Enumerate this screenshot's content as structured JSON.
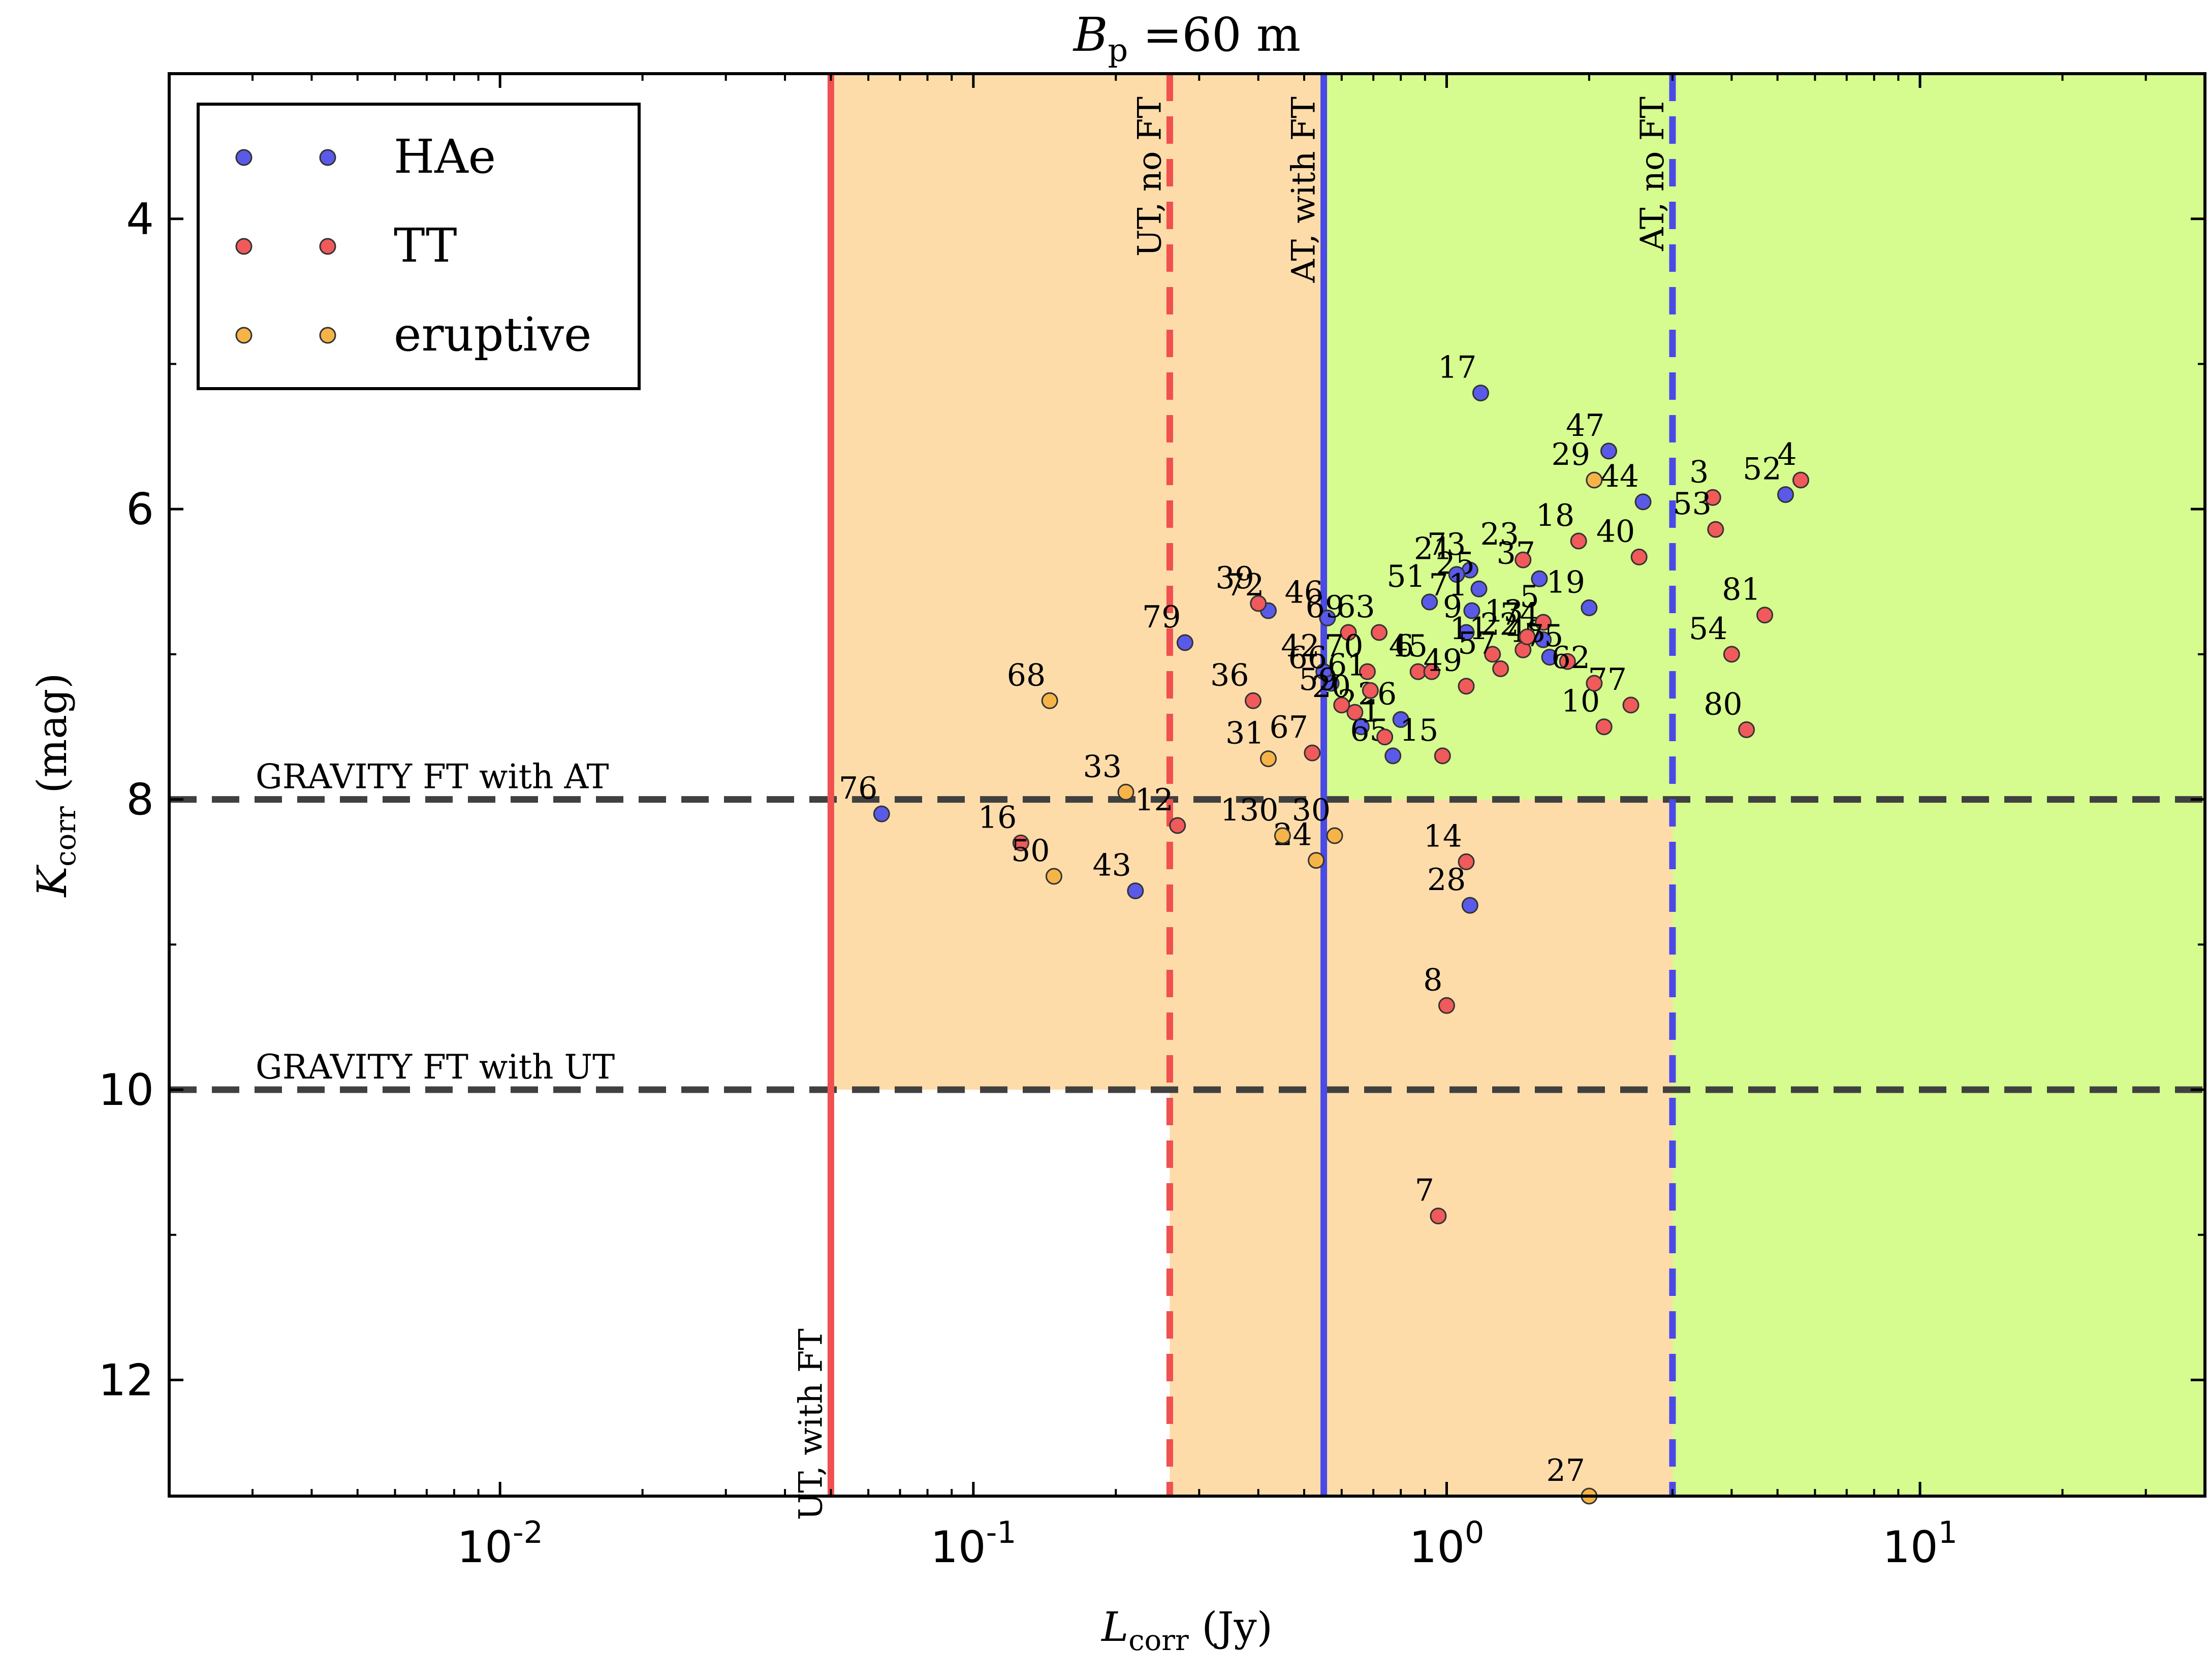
{
  "chart_data": {
    "type": "scatter",
    "title": "B_p = 60 m",
    "title_parts": {
      "main": "B",
      "sub": "p",
      "rest": " =60 m"
    },
    "xlabel": {
      "main": "L",
      "sub": "corr",
      "rest": " (Jy)"
    },
    "ylabel": {
      "main": "K",
      "sub": "corr",
      "rest": " (mag)"
    },
    "x_scale": "log",
    "xlim": [
      0.002,
      40
    ],
    "ylim": [
      12.8,
      3.0
    ],
    "y_inverted": true,
    "x_ticks": [
      {
        "value": 0.01,
        "base": "10",
        "exp": "-2"
      },
      {
        "value": 0.1,
        "base": "10",
        "exp": "-1"
      },
      {
        "value": 1,
        "base": "10",
        "exp": "0"
      },
      {
        "value": 10,
        "base": "10",
        "exp": "1"
      }
    ],
    "y_ticks": [
      4,
      6,
      8,
      10,
      12
    ],
    "legend": {
      "position": "upper-left",
      "entries": [
        {
          "label": "HAe",
          "color": "#5a5ae8"
        },
        {
          "label": "TT",
          "color": "#f05a5a"
        },
        {
          "label": "eruptive",
          "color": "#f6b448"
        }
      ]
    },
    "regions": [
      {
        "x": [
          0.05,
          0.55
        ],
        "y": [
          3.0,
          10
        ],
        "color": "#fddcaa"
      },
      {
        "x": [
          0.26,
          0.55
        ],
        "y": [
          10,
          12.8
        ],
        "color": "#fddcaa"
      },
      {
        "x": [
          0.55,
          3.0
        ],
        "y": [
          8,
          12.8
        ],
        "color": "#fddcaa"
      },
      {
        "x": [
          0.55,
          40
        ],
        "y": [
          3.0,
          8
        ],
        "color": "#d6fb8e"
      },
      {
        "x": [
          3.0,
          40
        ],
        "y": [
          8,
          12.8
        ],
        "color": "#d6fb8e"
      }
    ],
    "vlines": [
      {
        "x": 0.05,
        "style": "solid",
        "color": "#f05050",
        "label": "UT, with FT",
        "label_pos": "bottom"
      },
      {
        "x": 0.26,
        "style": "dashed",
        "color": "#f05050",
        "label": "UT, no FT",
        "label_pos": "top"
      },
      {
        "x": 0.55,
        "style": "solid",
        "color": "#4a4ae6",
        "label": "AT, with FT",
        "label_pos": "top"
      },
      {
        "x": 3.0,
        "style": "dashed",
        "color": "#4a4ae6",
        "label": "AT, no FT",
        "label_pos": "top"
      }
    ],
    "hlines": [
      {
        "y": 8,
        "style": "dashed",
        "color": "#404040",
        "label": "GRAVITY FT with AT"
      },
      {
        "y": 10,
        "style": "dashed",
        "color": "#404040",
        "label": "GRAVITY FT with UT"
      }
    ],
    "series": [
      {
        "name": "HAe",
        "color": "#5a5ae8",
        "points": [
          {
            "id": "17",
            "x": 1.18,
            "y": 5.2
          },
          {
            "id": "47",
            "x": 2.2,
            "y": 5.6
          },
          {
            "id": "44",
            "x": 2.6,
            "y": 5.95
          },
          {
            "id": "52",
            "x": 5.2,
            "y": 5.9
          },
          {
            "id": "73",
            "x": 1.12,
            "y": 6.42
          },
          {
            "id": "25",
            "x": 1.17,
            "y": 6.55
          },
          {
            "id": "51",
            "x": 0.92,
            "y": 6.64
          },
          {
            "id": "21",
            "x": 1.05,
            "y": 6.45
          },
          {
            "id": "71",
            "x": 1.13,
            "y": 6.7
          },
          {
            "id": "19",
            "x": 2.0,
            "y": 6.68
          },
          {
            "id": "37",
            "x": 1.57,
            "y": 6.48
          },
          {
            "id": "79",
            "x": 0.28,
            "y": 6.92
          },
          {
            "id": "72",
            "x": 0.42,
            "y": 6.7
          },
          {
            "id": "46",
            "x": 0.56,
            "y": 6.75
          },
          {
            "id": "42",
            "x": 0.55,
            "y": 7.12
          },
          {
            "id": "66",
            "x": 0.57,
            "y": 7.2
          },
          {
            "id": "2",
            "x": 0.66,
            "y": 7.5
          },
          {
            "id": "26",
            "x": 0.8,
            "y": 7.45
          },
          {
            "id": "65",
            "x": 0.77,
            "y": 7.7
          },
          {
            "id": "9",
            "x": 1.1,
            "y": 6.85
          },
          {
            "id": "74",
            "x": 1.6,
            "y": 6.9
          },
          {
            "id": "48",
            "x": 1.65,
            "y": 7.02
          },
          {
            "id": "43",
            "x": 0.22,
            "y": 8.63
          },
          {
            "id": "28",
            "x": 1.12,
            "y": 8.73
          },
          {
            "id": "76",
            "x": 0.064,
            "y": 8.1
          }
        ]
      },
      {
        "name": "TT",
        "color": "#f05a5a",
        "points": [
          {
            "id": "3",
            "x": 3.65,
            "y": 5.92
          },
          {
            "id": "53",
            "x": 3.7,
            "y": 6.14
          },
          {
            "id": "4",
            "x": 5.6,
            "y": 5.8
          },
          {
            "id": "18",
            "x": 1.9,
            "y": 6.22
          },
          {
            "id": "40",
            "x": 2.55,
            "y": 6.33
          },
          {
            "id": "23",
            "x": 1.45,
            "y": 6.35
          },
          {
            "id": "81",
            "x": 4.7,
            "y": 6.73
          },
          {
            "id": "54",
            "x": 4.0,
            "y": 7.0
          },
          {
            "id": "80",
            "x": 4.3,
            "y": 7.52
          },
          {
            "id": "39",
            "x": 0.4,
            "y": 6.65
          },
          {
            "id": "36",
            "x": 0.39,
            "y": 7.32
          },
          {
            "id": "67",
            "x": 0.52,
            "y": 7.68
          },
          {
            "id": "12",
            "x": 0.27,
            "y": 8.18
          },
          {
            "id": "16",
            "x": 0.126,
            "y": 8.3
          },
          {
            "id": "14",
            "x": 1.1,
            "y": 8.43
          },
          {
            "id": "8",
            "x": 1.0,
            "y": 9.42
          },
          {
            "id": "7",
            "x": 0.96,
            "y": 10.87
          },
          {
            "id": "63",
            "x": 0.72,
            "y": 6.85
          },
          {
            "id": "69",
            "x": 0.62,
            "y": 6.85
          },
          {
            "id": "70",
            "x": 0.68,
            "y": 7.12
          },
          {
            "id": "61",
            "x": 0.69,
            "y": 7.25
          },
          {
            "id": "59",
            "x": 0.6,
            "y": 7.35
          },
          {
            "id": "20",
            "x": 0.64,
            "y": 7.4
          },
          {
            "id": "6",
            "x": 0.87,
            "y": 7.12
          },
          {
            "id": "45",
            "x": 0.93,
            "y": 7.12
          },
          {
            "id": "49",
            "x": 1.1,
            "y": 7.22
          },
          {
            "id": "11",
            "x": 1.25,
            "y": 7.0
          },
          {
            "id": "57",
            "x": 1.3,
            "y": 7.1
          },
          {
            "id": "22",
            "x": 1.45,
            "y": 6.97
          },
          {
            "id": "13",
            "x": 1.48,
            "y": 6.88
          },
          {
            "id": "5",
            "x": 1.6,
            "y": 6.78
          },
          {
            "id": "75",
            "x": 1.8,
            "y": 7.05
          },
          {
            "id": "77",
            "x": 2.45,
            "y": 7.35
          },
          {
            "id": "10",
            "x": 2.15,
            "y": 7.5
          },
          {
            "id": "15",
            "x": 0.98,
            "y": 7.7
          },
          {
            "id": "62",
            "x": 2.05,
            "y": 7.2
          },
          {
            "id": "1",
            "x": 0.74,
            "y": 7.57
          }
        ]
      },
      {
        "name": "eruptive",
        "color": "#f6b448",
        "points": [
          {
            "id": "29",
            "x": 2.05,
            "y": 5.8
          },
          {
            "id": "68",
            "x": 0.145,
            "y": 7.32
          },
          {
            "id": "33",
            "x": 0.21,
            "y": 7.95
          },
          {
            "id": "31",
            "x": 0.42,
            "y": 7.72
          },
          {
            "id": "50",
            "x": 0.148,
            "y": 8.53
          },
          {
            "id": "30",
            "x": 0.58,
            "y": 8.25
          },
          {
            "id": "24",
            "x": 0.53,
            "y": 8.42
          },
          {
            "id": "130",
            "x": 0.45,
            "y": 8.25
          },
          {
            "id": "27",
            "x": 2.0,
            "y": 12.8
          }
        ]
      }
    ]
  }
}
